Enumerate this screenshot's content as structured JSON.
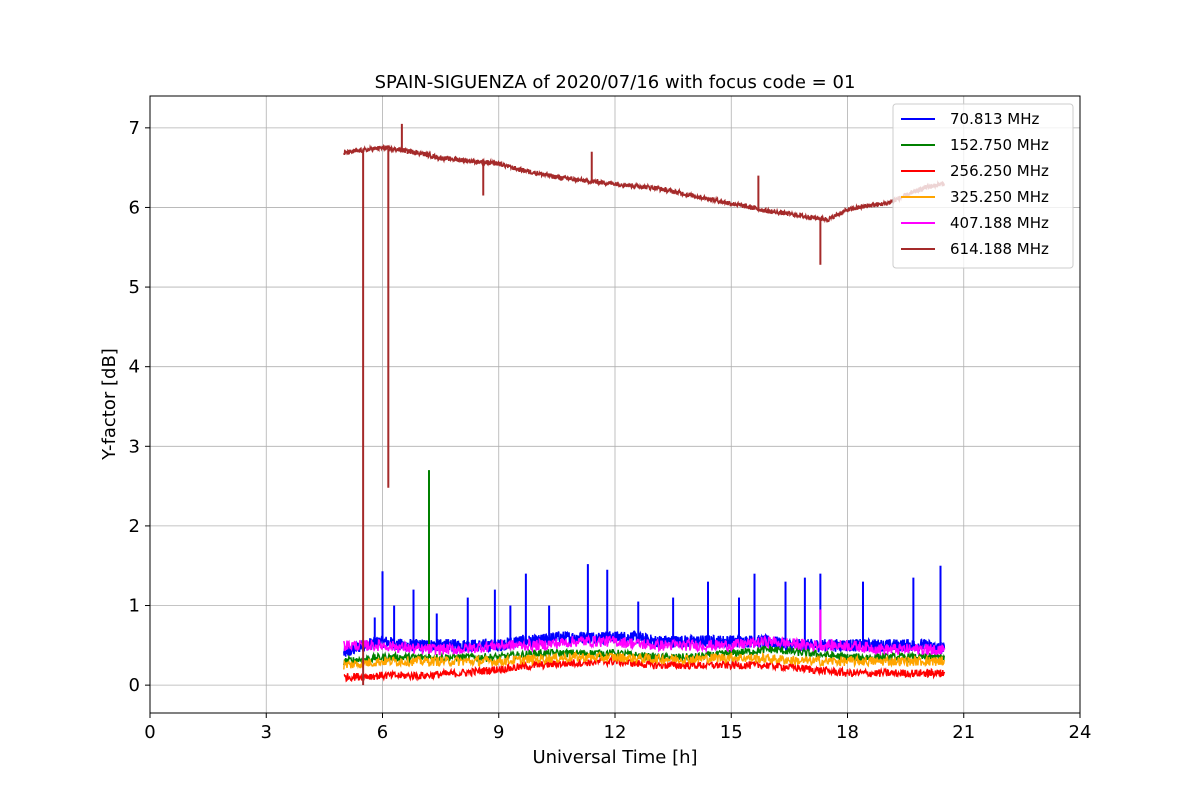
{
  "chart_data": {
    "type": "line",
    "title": "SPAIN-SIGUENZA of 2020/07/16 with focus code = 01",
    "xlabel": "Universal Time [h]",
    "ylabel": "Y-factor [dB]",
    "xlim": [
      0,
      24
    ],
    "ylim": [
      -0.35,
      7.4
    ],
    "xticks": [
      0,
      3,
      6,
      9,
      12,
      15,
      18,
      21,
      24
    ],
    "yticks": [
      0,
      1,
      2,
      3,
      4,
      5,
      6,
      7
    ],
    "grid": true,
    "legend_position": "top-right",
    "series": [
      {
        "name": " 70.813 MHz",
        "color": "#0000ff",
        "x": [
          5.0,
          5.5,
          6.0,
          6.5,
          7.0,
          7.5,
          8.0,
          8.5,
          9.0,
          9.5,
          10.0,
          10.5,
          11.0,
          11.5,
          12.0,
          12.5,
          13.0,
          13.5,
          14.0,
          14.5,
          15.0,
          15.5,
          16.0,
          16.5,
          17.0,
          17.5,
          18.0,
          18.5,
          19.0,
          19.5,
          20.0,
          20.5
        ],
        "y": [
          0.4,
          0.5,
          0.55,
          0.5,
          0.5,
          0.5,
          0.5,
          0.5,
          0.5,
          0.55,
          0.55,
          0.6,
          0.6,
          0.6,
          0.6,
          0.6,
          0.55,
          0.55,
          0.55,
          0.55,
          0.55,
          0.55,
          0.55,
          0.5,
          0.5,
          0.5,
          0.5,
          0.5,
          0.5,
          0.5,
          0.5,
          0.45
        ],
        "spikes": [
          [
            5.8,
            0.85
          ],
          [
            6.0,
            1.43
          ],
          [
            6.3,
            1.0
          ],
          [
            6.8,
            1.2
          ],
          [
            7.4,
            0.9
          ],
          [
            8.2,
            1.1
          ],
          [
            8.9,
            1.2
          ],
          [
            9.3,
            1.0
          ],
          [
            9.7,
            1.4
          ],
          [
            10.3,
            1.0
          ],
          [
            11.3,
            1.52
          ],
          [
            11.8,
            1.45
          ],
          [
            12.6,
            1.05
          ],
          [
            13.5,
            1.1
          ],
          [
            14.4,
            1.3
          ],
          [
            15.2,
            1.1
          ],
          [
            15.6,
            1.4
          ],
          [
            16.4,
            1.3
          ],
          [
            16.9,
            1.35
          ],
          [
            17.3,
            1.4
          ],
          [
            18.4,
            1.3
          ],
          [
            19.7,
            1.35
          ],
          [
            20.4,
            1.5
          ]
        ]
      },
      {
        "name": "152.750 MHz",
        "color": "#008000",
        "x": [
          5.0,
          6.0,
          7.0,
          8.0,
          9.0,
          10.0,
          11.0,
          12.0,
          13.0,
          14.0,
          15.0,
          16.0,
          17.0,
          18.0,
          19.0,
          20.0,
          20.5
        ],
        "y": [
          0.3,
          0.35,
          0.35,
          0.35,
          0.35,
          0.4,
          0.4,
          0.4,
          0.35,
          0.35,
          0.4,
          0.45,
          0.4,
          0.35,
          0.35,
          0.35,
          0.35
        ],
        "spikes": [
          [
            7.2,
            2.7
          ]
        ]
      },
      {
        "name": "256.250 MHz",
        "color": "#ff0000",
        "x": [
          5.0,
          6.0,
          7.0,
          8.0,
          9.0,
          10.0,
          11.0,
          12.0,
          13.0,
          14.0,
          15.0,
          16.0,
          17.0,
          18.0,
          19.0,
          20.0,
          20.5
        ],
        "y": [
          0.1,
          0.12,
          0.12,
          0.15,
          0.2,
          0.25,
          0.28,
          0.3,
          0.25,
          0.25,
          0.25,
          0.25,
          0.2,
          0.15,
          0.15,
          0.15,
          0.15
        ],
        "spikes": []
      },
      {
        "name": "325.250 MHz",
        "color": "#ffa500",
        "x": [
          5.0,
          6.0,
          7.0,
          8.0,
          9.0,
          10.0,
          11.0,
          12.0,
          13.0,
          14.0,
          15.0,
          16.0,
          17.0,
          18.0,
          19.0,
          20.0,
          20.5
        ],
        "y": [
          0.25,
          0.3,
          0.3,
          0.3,
          0.3,
          0.33,
          0.35,
          0.35,
          0.33,
          0.33,
          0.35,
          0.33,
          0.3,
          0.3,
          0.3,
          0.3,
          0.3
        ],
        "spikes": []
      },
      {
        "name": "407.188 MHz",
        "color": "#ff00ff",
        "x": [
          5.0,
          6.0,
          7.0,
          8.0,
          9.0,
          10.0,
          11.0,
          12.0,
          13.0,
          14.0,
          15.0,
          16.0,
          17.0,
          18.0,
          19.0,
          20.0,
          20.5
        ],
        "y": [
          0.5,
          0.5,
          0.45,
          0.45,
          0.5,
          0.5,
          0.55,
          0.55,
          0.5,
          0.5,
          0.5,
          0.55,
          0.5,
          0.5,
          0.45,
          0.45,
          0.45
        ],
        "spikes": [
          [
            17.3,
            0.95
          ]
        ]
      },
      {
        "name": "614.188 MHz",
        "color": "#a52a2a",
        "x": [
          5.0,
          5.5,
          6.0,
          6.5,
          7.0,
          7.5,
          8.0,
          8.5,
          9.0,
          9.5,
          10.0,
          10.5,
          11.0,
          11.5,
          12.0,
          12.5,
          13.0,
          13.5,
          14.0,
          14.5,
          15.0,
          15.5,
          16.0,
          16.5,
          17.0,
          17.5,
          18.0,
          18.5,
          19.0,
          19.5,
          20.0,
          20.5
        ],
        "y": [
          6.68,
          6.72,
          6.75,
          6.72,
          6.68,
          6.62,
          6.6,
          6.57,
          6.55,
          6.48,
          6.43,
          6.38,
          6.35,
          6.32,
          6.3,
          6.27,
          6.25,
          6.2,
          6.15,
          6.1,
          6.05,
          6.0,
          5.95,
          5.92,
          5.88,
          5.85,
          5.97,
          6.02,
          6.05,
          6.15,
          6.25,
          6.3
        ],
        "spikes": [
          [
            5.5,
            0.0
          ],
          [
            6.15,
            2.48
          ],
          [
            6.5,
            7.05
          ],
          [
            8.6,
            6.15
          ],
          [
            11.4,
            6.7
          ],
          [
            15.7,
            6.4
          ],
          [
            17.3,
            5.28
          ]
        ]
      }
    ]
  }
}
